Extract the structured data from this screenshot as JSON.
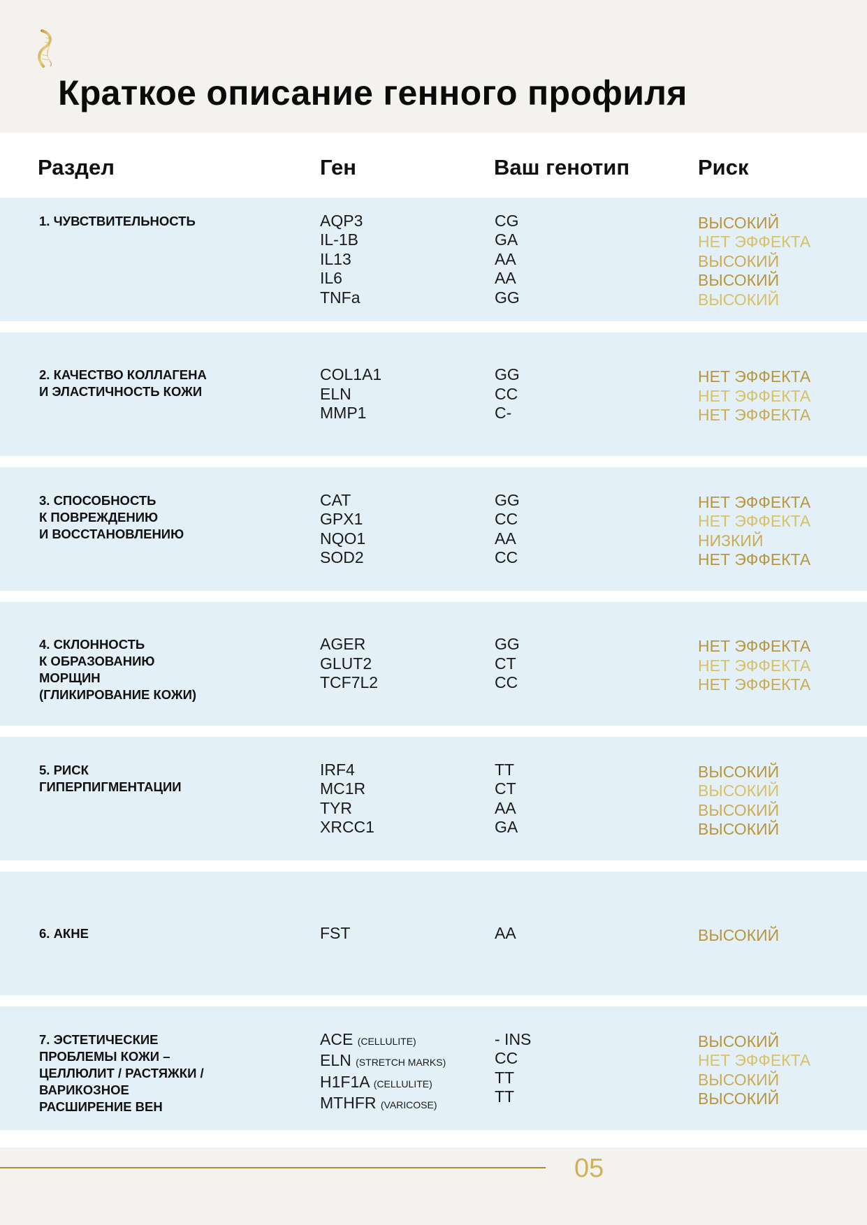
{
  "title": "Краткое описание генного профиля",
  "colors": {
    "gold": "#b8963e",
    "gold_light": "#d8c066",
    "row_bg": "#e3f0f7",
    "page_bg": "#f3f2ee"
  },
  "header": {
    "section": "Раздел",
    "gene": "Ген",
    "genotype": "Ваш генотип",
    "risk": "Риск"
  },
  "rows": [
    {
      "section": [
        "1. ЧУВСТВИТЕЛЬНОСТЬ"
      ],
      "genes": [
        {
          "name": "AQP3",
          "note": ""
        },
        {
          "name": "IL-1B",
          "note": ""
        },
        {
          "name": "IL13",
          "note": ""
        },
        {
          "name": "IL6",
          "note": ""
        },
        {
          "name": "TNFa",
          "note": ""
        }
      ],
      "genotypes": [
        "CG",
        "GA",
        "AA",
        "AA",
        "GG"
      ],
      "risks": [
        "ВЫСОКИЙ",
        "НЕТ ЭФФЕКТА",
        "ВЫСОКИЙ",
        "ВЫСОКИЙ",
        "ВЫСОКИЙ"
      ]
    },
    {
      "section": [
        "2. КАЧЕСТВО КОЛЛАГЕНА",
        "И ЭЛАСТИЧНОСТЬ КОЖИ"
      ],
      "genes": [
        {
          "name": "COL1A1",
          "note": ""
        },
        {
          "name": "ELN",
          "note": ""
        },
        {
          "name": "MMP1",
          "note": ""
        }
      ],
      "genotypes": [
        "GG",
        "CC",
        "C-"
      ],
      "risks": [
        "НЕТ ЭФФЕКТА",
        "НЕТ ЭФФЕКТА",
        "НЕТ ЭФФЕКТА"
      ]
    },
    {
      "section": [
        "3. СПОСОБНОСТЬ",
        "К ПОВРЕЖДЕНИЮ",
        "И ВОССТАНОВЛЕНИЮ"
      ],
      "genes": [
        {
          "name": "CAT",
          "note": ""
        },
        {
          "name": "GPX1",
          "note": ""
        },
        {
          "name": "NQO1",
          "note": ""
        },
        {
          "name": "SOD2",
          "note": ""
        }
      ],
      "genotypes": [
        "GG",
        "CC",
        "AA",
        "CC"
      ],
      "risks": [
        "НЕТ ЭФФЕКТА",
        "НЕТ ЭФФЕКТА",
        "НИЗКИЙ",
        "НЕТ ЭФФЕКТА"
      ]
    },
    {
      "section": [
        "4. СКЛОННОСТЬ",
        "К ОБРАЗОВАНИЮ",
        "МОРЩИН",
        "(ГЛИКИРОВАНИЕ КОЖИ)"
      ],
      "genes": [
        {
          "name": "AGER",
          "note": ""
        },
        {
          "name": "GLUT2",
          "note": ""
        },
        {
          "name": "TCF7L2",
          "note": ""
        }
      ],
      "genotypes": [
        "GG",
        "CT",
        "CC"
      ],
      "risks": [
        "НЕТ ЭФФЕКТА",
        "НЕТ ЭФФЕКТА",
        "НЕТ ЭФФЕКТА"
      ]
    },
    {
      "section": [
        "5. РИСК",
        "ГИПЕРПИГМЕНТАЦИИ"
      ],
      "genes": [
        {
          "name": "IRF4",
          "note": ""
        },
        {
          "name": "MC1R",
          "note": ""
        },
        {
          "name": "TYR",
          "note": ""
        },
        {
          "name": "XRCC1",
          "note": ""
        }
      ],
      "genotypes": [
        "TT",
        "CT",
        "AA",
        "GA"
      ],
      "risks": [
        "ВЫСОКИЙ",
        "ВЫСОКИЙ",
        "ВЫСОКИЙ",
        "ВЫСОКИЙ"
      ]
    },
    {
      "section": [
        "6. АКНЕ"
      ],
      "genes": [
        {
          "name": "FST",
          "note": ""
        }
      ],
      "genotypes": [
        "AA"
      ],
      "risks": [
        "ВЫСОКИЙ"
      ]
    },
    {
      "section": [
        "7. ЭСТЕТИЧЕСКИЕ",
        "ПРОБЛЕМЫ КОЖИ –",
        "ЦЕЛЛЮЛИТ / РАСТЯЖКИ /",
        "ВАРИКОЗНОЕ",
        "РАСШИРЕНИЕ ВЕН"
      ],
      "genes": [
        {
          "name": "ACE",
          "note": "(CELLULITE)"
        },
        {
          "name": "ELN",
          "note": "(STRETCH MARKS)"
        },
        {
          "name": "H1F1A",
          "note": "(CELLULITE)"
        },
        {
          "name": "MTHFR",
          "note": "(VARICOSE)"
        }
      ],
      "genotypes": [
        "- INS",
        "CC",
        "TT",
        "TT"
      ],
      "risks": [
        "ВЫСОКИЙ",
        "НЕТ ЭФФЕКТА",
        "ВЫСОКИЙ",
        "ВЫСОКИЙ"
      ]
    }
  ],
  "page_number": "05"
}
